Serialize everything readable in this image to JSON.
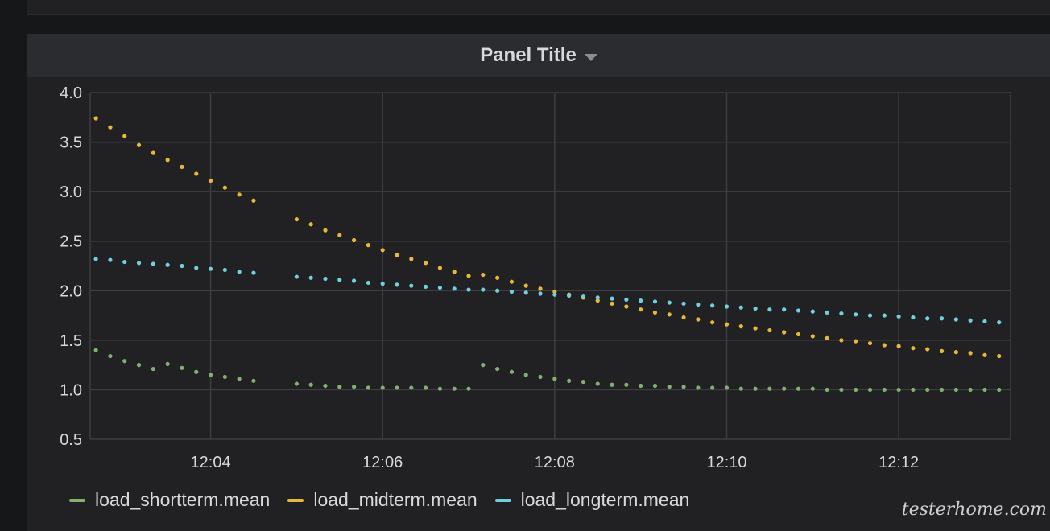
{
  "panel": {
    "title": "Panel Title"
  },
  "watermark": "testerhome.com",
  "colors": {
    "grid": "#3d3e42",
    "background": "#212124"
  },
  "chart_data": {
    "type": "scatter",
    "title": "Panel Title",
    "xlabel": "",
    "ylabel": "",
    "x_ticks": [
      "12:04",
      "12:06",
      "12:08",
      "12:10",
      "12:12"
    ],
    "y_ticks": [
      "4.0",
      "3.5",
      "3.0",
      "2.5",
      "2.0",
      "1.5",
      "1.0",
      "0.5"
    ],
    "ylim": [
      0.5,
      4.0
    ],
    "xlim": [
      "12:02:36",
      "12:13:18"
    ],
    "grid": true,
    "legend_position": "bottom-left",
    "series": [
      {
        "name": "load_shortterm.mean",
        "color": "#7eb26d",
        "points": [
          [
            "12:02:40",
            1.4
          ],
          [
            "12:02:50",
            1.34
          ],
          [
            "12:03:00",
            1.29
          ],
          [
            "12:03:10",
            1.25
          ],
          [
            "12:03:20",
            1.21
          ],
          [
            "12:03:30",
            1.26
          ],
          [
            "12:03:40",
            1.22
          ],
          [
            "12:03:50",
            1.18
          ],
          [
            "12:04:00",
            1.15
          ],
          [
            "12:04:10",
            1.13
          ],
          [
            "12:04:20",
            1.11
          ],
          [
            "12:04:30",
            1.09
          ],
          [
            "12:05:00",
            1.06
          ],
          [
            "12:05:10",
            1.05
          ],
          [
            "12:05:20",
            1.04
          ],
          [
            "12:05:30",
            1.03
          ],
          [
            "12:05:40",
            1.03
          ],
          [
            "12:05:50",
            1.02
          ],
          [
            "12:06:00",
            1.02
          ],
          [
            "12:06:10",
            1.02
          ],
          [
            "12:06:20",
            1.02
          ],
          [
            "12:06:30",
            1.02
          ],
          [
            "12:06:40",
            1.01
          ],
          [
            "12:06:50",
            1.01
          ],
          [
            "12:07:00",
            1.01
          ],
          [
            "12:07:10",
            1.25
          ],
          [
            "12:07:20",
            1.21
          ],
          [
            "12:07:30",
            1.18
          ],
          [
            "12:07:40",
            1.15
          ],
          [
            "12:07:50",
            1.13
          ],
          [
            "12:08:00",
            1.11
          ],
          [
            "12:08:10",
            1.09
          ],
          [
            "12:08:20",
            1.08
          ],
          [
            "12:08:30",
            1.06
          ],
          [
            "12:08:40",
            1.05
          ],
          [
            "12:08:50",
            1.05
          ],
          [
            "12:09:00",
            1.04
          ],
          [
            "12:09:10",
            1.04
          ],
          [
            "12:09:20",
            1.03
          ],
          [
            "12:09:30",
            1.03
          ],
          [
            "12:09:40",
            1.02
          ],
          [
            "12:09:50",
            1.02
          ],
          [
            "12:10:00",
            1.02
          ],
          [
            "12:10:10",
            1.01
          ],
          [
            "12:10:20",
            1.01
          ],
          [
            "12:10:30",
            1.01
          ],
          [
            "12:10:40",
            1.01
          ],
          [
            "12:10:50",
            1.01
          ],
          [
            "12:11:00",
            1.01
          ],
          [
            "12:11:10",
            1.0
          ],
          [
            "12:11:20",
            1.0
          ],
          [
            "12:11:30",
            1.0
          ],
          [
            "12:11:40",
            1.0
          ],
          [
            "12:11:50",
            1.0
          ],
          [
            "12:12:00",
            1.0
          ],
          [
            "12:12:10",
            1.0
          ],
          [
            "12:12:20",
            1.0
          ],
          [
            "12:12:30",
            1.0
          ],
          [
            "12:12:40",
            1.0
          ],
          [
            "12:12:50",
            1.0
          ],
          [
            "12:13:00",
            1.0
          ],
          [
            "12:13:10",
            1.0
          ]
        ]
      },
      {
        "name": "load_midterm.mean",
        "color": "#eab839",
        "points": [
          [
            "12:02:40",
            3.74
          ],
          [
            "12:02:50",
            3.65
          ],
          [
            "12:03:00",
            3.56
          ],
          [
            "12:03:10",
            3.47
          ],
          [
            "12:03:20",
            3.39
          ],
          [
            "12:03:30",
            3.32
          ],
          [
            "12:03:40",
            3.25
          ],
          [
            "12:03:50",
            3.18
          ],
          [
            "12:04:00",
            3.11
          ],
          [
            "12:04:10",
            3.04
          ],
          [
            "12:04:20",
            2.97
          ],
          [
            "12:04:30",
            2.91
          ],
          [
            "12:05:00",
            2.72
          ],
          [
            "12:05:10",
            2.67
          ],
          [
            "12:05:20",
            2.61
          ],
          [
            "12:05:30",
            2.56
          ],
          [
            "12:05:40",
            2.51
          ],
          [
            "12:05:50",
            2.46
          ],
          [
            "12:06:00",
            2.41
          ],
          [
            "12:06:10",
            2.36
          ],
          [
            "12:06:20",
            2.32
          ],
          [
            "12:06:30",
            2.28
          ],
          [
            "12:06:40",
            2.23
          ],
          [
            "12:06:50",
            2.19
          ],
          [
            "12:07:00",
            2.15
          ],
          [
            "12:07:10",
            2.16
          ],
          [
            "12:07:20",
            2.13
          ],
          [
            "12:07:30",
            2.09
          ],
          [
            "12:07:40",
            2.05
          ],
          [
            "12:07:50",
            2.02
          ],
          [
            "12:08:00",
            1.99
          ],
          [
            "12:08:10",
            1.96
          ],
          [
            "12:08:20",
            1.93
          ],
          [
            "12:08:30",
            1.9
          ],
          [
            "12:08:40",
            1.87
          ],
          [
            "12:08:50",
            1.84
          ],
          [
            "12:09:00",
            1.81
          ],
          [
            "12:09:10",
            1.78
          ],
          [
            "12:09:20",
            1.76
          ],
          [
            "12:09:30",
            1.73
          ],
          [
            "12:09:40",
            1.71
          ],
          [
            "12:09:50",
            1.68
          ],
          [
            "12:10:00",
            1.66
          ],
          [
            "12:10:10",
            1.64
          ],
          [
            "12:10:20",
            1.62
          ],
          [
            "12:10:30",
            1.6
          ],
          [
            "12:10:40",
            1.58
          ],
          [
            "12:10:50",
            1.56
          ],
          [
            "12:11:00",
            1.54
          ],
          [
            "12:11:10",
            1.52
          ],
          [
            "12:11:20",
            1.5
          ],
          [
            "12:11:30",
            1.49
          ],
          [
            "12:11:40",
            1.47
          ],
          [
            "12:11:50",
            1.45
          ],
          [
            "12:12:00",
            1.44
          ],
          [
            "12:12:10",
            1.42
          ],
          [
            "12:12:20",
            1.41
          ],
          [
            "12:12:30",
            1.39
          ],
          [
            "12:12:40",
            1.38
          ],
          [
            "12:12:50",
            1.37
          ],
          [
            "12:13:00",
            1.35
          ],
          [
            "12:13:10",
            1.34
          ]
        ]
      },
      {
        "name": "load_longterm.mean",
        "color": "#6ed0e0",
        "points": [
          [
            "12:02:40",
            2.32
          ],
          [
            "12:02:50",
            2.31
          ],
          [
            "12:03:00",
            2.29
          ],
          [
            "12:03:10",
            2.28
          ],
          [
            "12:03:20",
            2.27
          ],
          [
            "12:03:30",
            2.26
          ],
          [
            "12:03:40",
            2.25
          ],
          [
            "12:03:50",
            2.23
          ],
          [
            "12:04:00",
            2.22
          ],
          [
            "12:04:10",
            2.21
          ],
          [
            "12:04:20",
            2.19
          ],
          [
            "12:04:30",
            2.18
          ],
          [
            "12:05:00",
            2.14
          ],
          [
            "12:05:10",
            2.13
          ],
          [
            "12:05:20",
            2.12
          ],
          [
            "12:05:30",
            2.11
          ],
          [
            "12:05:40",
            2.1
          ],
          [
            "12:05:50",
            2.08
          ],
          [
            "12:06:00",
            2.07
          ],
          [
            "12:06:10",
            2.06
          ],
          [
            "12:06:20",
            2.05
          ],
          [
            "12:06:30",
            2.04
          ],
          [
            "12:06:40",
            2.03
          ],
          [
            "12:06:50",
            2.02
          ],
          [
            "12:07:00",
            2.01
          ],
          [
            "12:07:10",
            2.01
          ],
          [
            "12:07:20",
            2.0
          ],
          [
            "12:07:30",
            1.99
          ],
          [
            "12:07:40",
            1.98
          ],
          [
            "12:07:50",
            1.97
          ],
          [
            "12:08:00",
            1.96
          ],
          [
            "12:08:10",
            1.95
          ],
          [
            "12:08:20",
            1.94
          ],
          [
            "12:08:30",
            1.93
          ],
          [
            "12:08:40",
            1.92
          ],
          [
            "12:08:50",
            1.91
          ],
          [
            "12:09:00",
            1.9
          ],
          [
            "12:09:10",
            1.89
          ],
          [
            "12:09:20",
            1.88
          ],
          [
            "12:09:30",
            1.87
          ],
          [
            "12:09:40",
            1.86
          ],
          [
            "12:09:50",
            1.85
          ],
          [
            "12:10:00",
            1.84
          ],
          [
            "12:10:10",
            1.83
          ],
          [
            "12:10:20",
            1.82
          ],
          [
            "12:10:30",
            1.81
          ],
          [
            "12:10:40",
            1.81
          ],
          [
            "12:10:50",
            1.8
          ],
          [
            "12:11:00",
            1.79
          ],
          [
            "12:11:10",
            1.78
          ],
          [
            "12:11:20",
            1.77
          ],
          [
            "12:11:30",
            1.76
          ],
          [
            "12:11:40",
            1.75
          ],
          [
            "12:11:50",
            1.75
          ],
          [
            "12:12:00",
            1.74
          ],
          [
            "12:12:10",
            1.73
          ],
          [
            "12:12:20",
            1.72
          ],
          [
            "12:12:30",
            1.72
          ],
          [
            "12:12:40",
            1.71
          ],
          [
            "12:12:50",
            1.7
          ],
          [
            "12:13:00",
            1.69
          ],
          [
            "12:13:10",
            1.68
          ]
        ]
      }
    ]
  }
}
